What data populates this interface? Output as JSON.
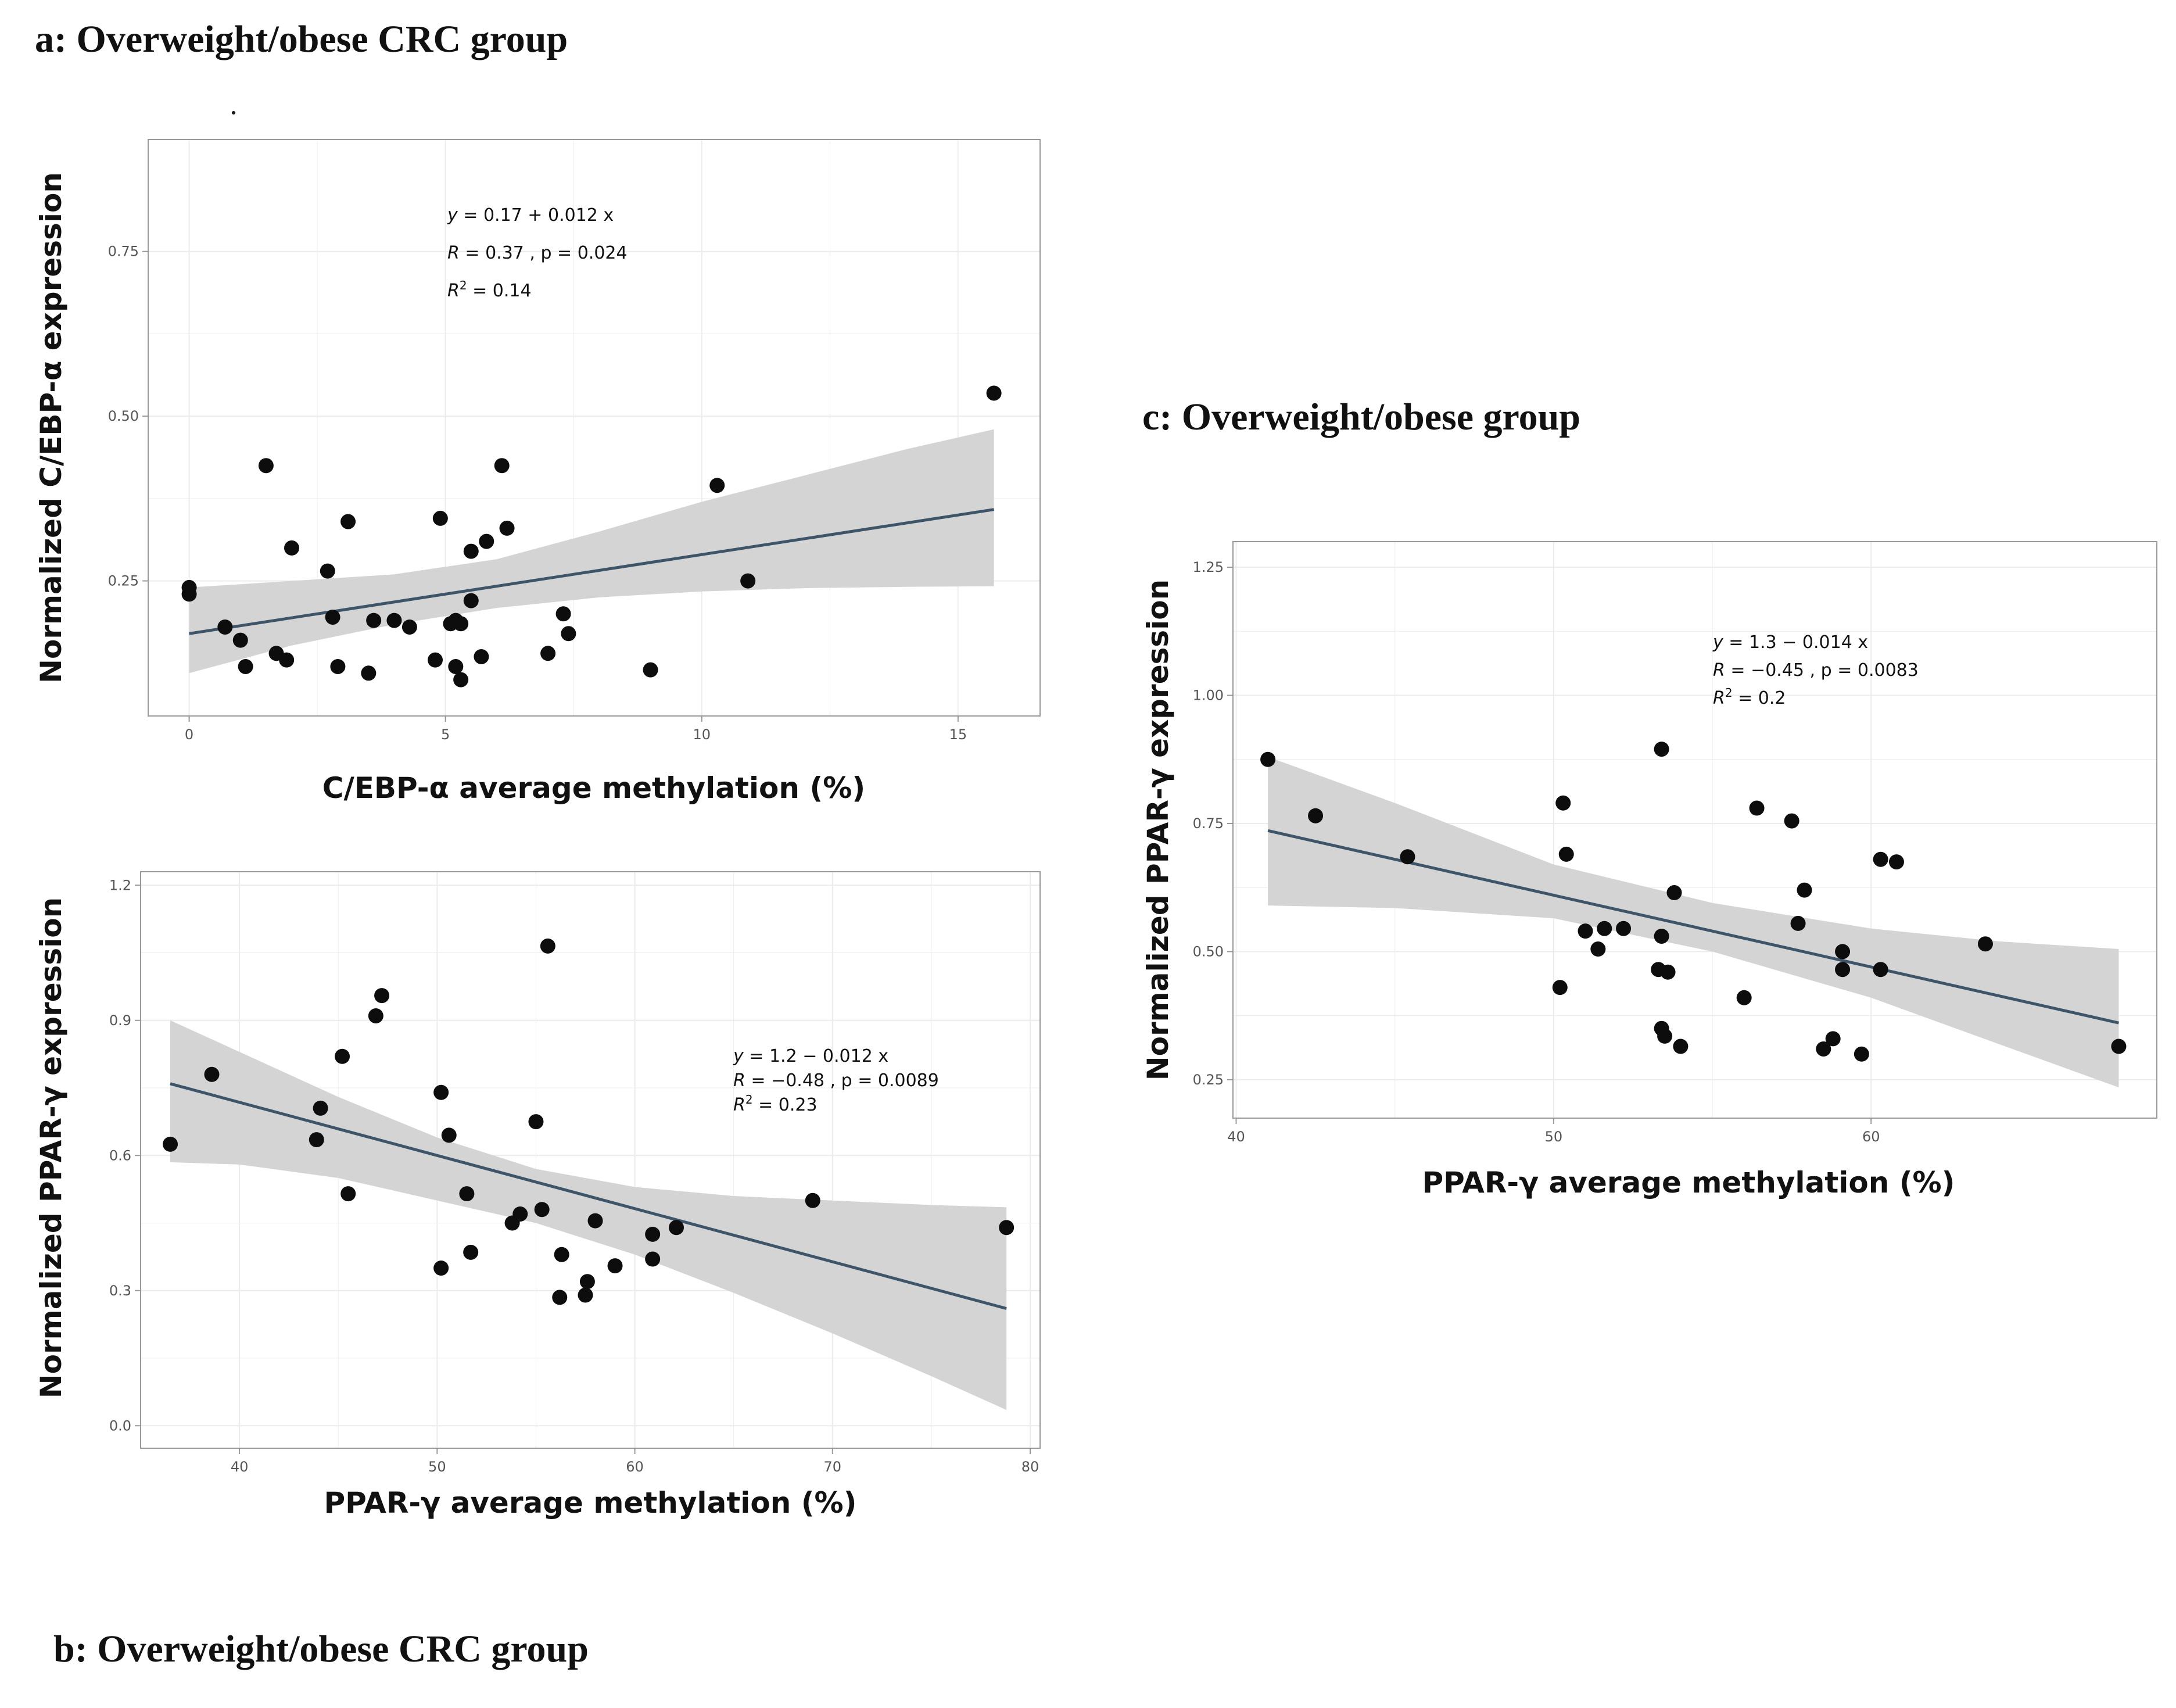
{
  "panel_titles": {
    "a": "a: Overweight/obese CRC group",
    "b": "b: Overweight/obese CRC group",
    "c": "c: Overweight/obese group"
  },
  "colors": {
    "point": "#0d0d0d",
    "line": "#3e5468",
    "band": "#d4d4d4",
    "grid": "#ececec",
    "panel_border": "#999999",
    "tick_text": "#555555",
    "label_text": "#111111"
  },
  "chart_data": [
    {
      "id": "a",
      "type": "scatter",
      "title": "a: Overweight/obese CRC group",
      "xlabel": "C/EBP-α average methylation (%)",
      "ylabel": "Normalized C/EBP-α expression",
      "xlim": [
        -0.8,
        16.6
      ],
      "ylim": [
        0.045,
        0.92
      ],
      "xticks": [
        0,
        5,
        10,
        15
      ],
      "xtick_labels": [
        "0",
        "5",
        "10",
        "15"
      ],
      "yticks": [
        0.25,
        0.5,
        0.75
      ],
      "ytick_labels": [
        "0.25",
        "0.50",
        "0.75"
      ],
      "grid": true,
      "annotation": {
        "eq_pre": "y",
        "eq_post": " = 0.17 + 0.012 x",
        "r_text": " = 0.37 , p = 0.024",
        "r2_text": " = 0.14"
      },
      "fit": {
        "intercept": 0.17,
        "slope": 0.012,
        "x_range": [
          0,
          15.7
        ]
      },
      "band": {
        "x": [
          0,
          2,
          4,
          6,
          8,
          10,
          12,
          14,
          15.7
        ],
        "lower": [
          0.11,
          0.152,
          0.184,
          0.209,
          0.225,
          0.234,
          0.239,
          0.241,
          0.242
        ],
        "upper": [
          0.24,
          0.25,
          0.26,
          0.283,
          0.325,
          0.37,
          0.41,
          0.45,
          0.48
        ]
      },
      "points": {
        "x": [
          0,
          0,
          0.7,
          1.0,
          1.1,
          1.5,
          1.7,
          1.9,
          2.0,
          2.7,
          2.8,
          2.9,
          3.1,
          3.5,
          3.6,
          4.0,
          4.3,
          4.8,
          4.9,
          5.1,
          5.2,
          5.2,
          5.3,
          5.3,
          5.5,
          5.5,
          5.7,
          5.8,
          6.1,
          6.2,
          7.0,
          7.3,
          7.4,
          9.0,
          10.3,
          10.9,
          15.7
        ],
        "y": [
          0.24,
          0.23,
          0.18,
          0.16,
          0.12,
          0.425,
          0.14,
          0.13,
          0.3,
          0.265,
          0.195,
          0.12,
          0.34,
          0.11,
          0.19,
          0.19,
          0.18,
          0.13,
          0.345,
          0.185,
          0.19,
          0.12,
          0.1,
          0.185,
          0.295,
          0.22,
          0.135,
          0.31,
          0.425,
          0.33,
          0.14,
          0.2,
          0.17,
          0.115,
          0.395,
          0.25,
          0.535
        ]
      }
    },
    {
      "id": "b",
      "type": "scatter",
      "title": "b: Overweight/obese CRC group",
      "xlabel": "PPAR-γ average methylation (%)",
      "ylabel": "Normalized PPAR-γ expression",
      "xlim": [
        35,
        80.5
      ],
      "ylim": [
        -0.05,
        1.23
      ],
      "xticks": [
        40,
        50,
        60,
        70,
        80
      ],
      "xtick_labels": [
        "40",
        "50",
        "60",
        "70",
        "80"
      ],
      "yticks": [
        0,
        0.3,
        0.6,
        0.9,
        1.2
      ],
      "ytick_labels": [
        "0.0",
        "0.3",
        "0.6",
        "0.9",
        "1.2"
      ],
      "grid": true,
      "annotation": {
        "eq_pre": "y",
        "eq_post": " = 1.2 − 0.012 x",
        "r_text": " = −0.48 , p = 0.0089",
        "r2_text": " = 0.23"
      },
      "fit": {
        "intercept": 1.19,
        "slope": -0.0118,
        "x_range": [
          36.5,
          78.8
        ]
      },
      "band": {
        "x": [
          36.5,
          40,
          45,
          50,
          55,
          60,
          65,
          70,
          75,
          78.8
        ],
        "lower": [
          0.585,
          0.58,
          0.55,
          0.5,
          0.45,
          0.38,
          0.295,
          0.205,
          0.11,
          0.035
        ],
        "upper": [
          0.9,
          0.83,
          0.73,
          0.64,
          0.57,
          0.53,
          0.51,
          0.5,
          0.49,
          0.485
        ]
      },
      "points": {
        "x": [
          36.5,
          38.6,
          43.9,
          44.1,
          45.2,
          45.5,
          46.9,
          47.2,
          50.2,
          50.2,
          50.6,
          51.5,
          51.7,
          53.8,
          54.2,
          55.0,
          55.3,
          55.6,
          56.2,
          56.3,
          57.5,
          57.6,
          58.0,
          59.0,
          60.9,
          60.9,
          62.1,
          69.0,
          78.8
        ],
        "y": [
          0.625,
          0.78,
          0.635,
          0.705,
          0.82,
          0.515,
          0.91,
          0.955,
          0.35,
          0.74,
          0.645,
          0.515,
          0.385,
          0.45,
          0.47,
          0.675,
          0.48,
          1.065,
          0.285,
          0.38,
          0.29,
          0.32,
          0.455,
          0.355,
          0.37,
          0.425,
          0.44,
          0.5,
          0.44
        ]
      }
    },
    {
      "id": "c",
      "type": "scatter",
      "title": "c: Overweight/obese group",
      "xlabel": "PPAR-γ average methylation (%)",
      "ylabel": "Normalized PPAR-γ expression",
      "xlim": [
        39.9,
        69.0
      ],
      "ylim": [
        0.175,
        1.3
      ],
      "xticks": [
        40,
        50,
        60
      ],
      "xtick_labels": [
        "40",
        "50",
        "60"
      ],
      "yticks": [
        0.25,
        0.5,
        0.75,
        1.0,
        1.25
      ],
      "ytick_labels": [
        "0.25",
        "0.50",
        "0.75",
        "1.00",
        "1.25"
      ],
      "grid": true,
      "annotation": {
        "eq_pre": "y",
        "eq_post": " = 1.3 − 0.014 x",
        "r_text": " = −0.45 , p = 0.0083",
        "r2_text": " = 0.2"
      },
      "fit": {
        "intercept": 1.31,
        "slope": -0.014,
        "x_range": [
          41,
          67.8
        ]
      },
      "band": {
        "x": [
          41,
          45,
          50,
          55,
          60,
          64,
          67.8
        ],
        "lower": [
          0.59,
          0.585,
          0.565,
          0.5,
          0.41,
          0.32,
          0.235
        ],
        "upper": [
          0.88,
          0.79,
          0.67,
          0.595,
          0.545,
          0.52,
          0.505
        ]
      },
      "points": {
        "x": [
          41.0,
          42.5,
          45.4,
          50.2,
          50.3,
          50.4,
          51.0,
          51.4,
          51.6,
          52.2,
          53.3,
          53.4,
          53.4,
          53.4,
          53.5,
          53.6,
          53.8,
          54.0,
          56.0,
          56.4,
          57.5,
          57.7,
          57.9,
          58.5,
          58.8,
          59.1,
          59.1,
          59.7,
          60.3,
          60.3,
          60.8,
          63.6,
          67.8
        ],
        "y": [
          0.875,
          0.765,
          0.685,
          0.43,
          0.79,
          0.69,
          0.54,
          0.505,
          0.545,
          0.545,
          0.465,
          0.895,
          0.53,
          0.35,
          0.335,
          0.46,
          0.615,
          0.315,
          0.41,
          0.78,
          0.755,
          0.555,
          0.62,
          0.31,
          0.33,
          0.465,
          0.5,
          0.3,
          0.465,
          0.68,
          0.675,
          0.515,
          0.315
        ]
      }
    }
  ]
}
